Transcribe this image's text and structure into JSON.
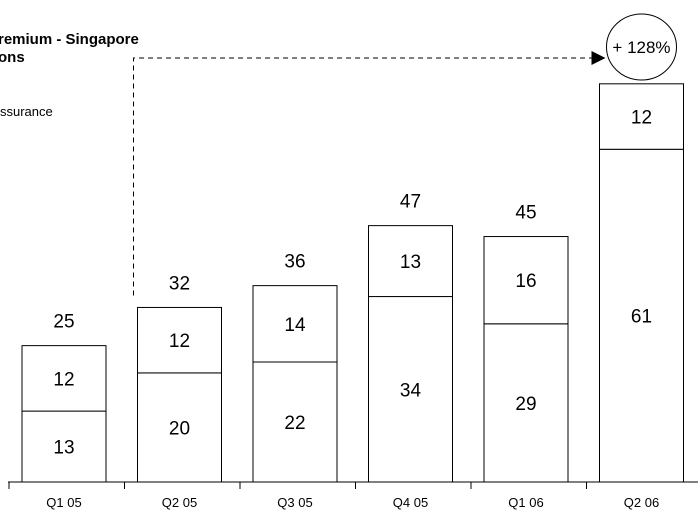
{
  "chart_data": {
    "type": "bar",
    "stacked": true,
    "title_lines": [
      "remium - Singapore",
      "ons"
    ],
    "legend_entries": [
      "ssurance"
    ],
    "categories": [
      "Q1 05",
      "Q2 05",
      "Q3 05",
      "Q4 05",
      "Q1 06",
      "Q2 06"
    ],
    "series": [
      {
        "values": [
          13,
          20,
          22,
          34,
          29,
          61
        ]
      },
      {
        "values": [
          12,
          12,
          14,
          13,
          16,
          12
        ]
      }
    ],
    "totals": [
      25,
      32,
      36,
      47,
      45,
      73
    ],
    "annotation": {
      "text": "+ 128%",
      "from": "Q2 05",
      "to": "Q2 06"
    },
    "ylim": [
      0,
      77
    ],
    "grid": false
  }
}
